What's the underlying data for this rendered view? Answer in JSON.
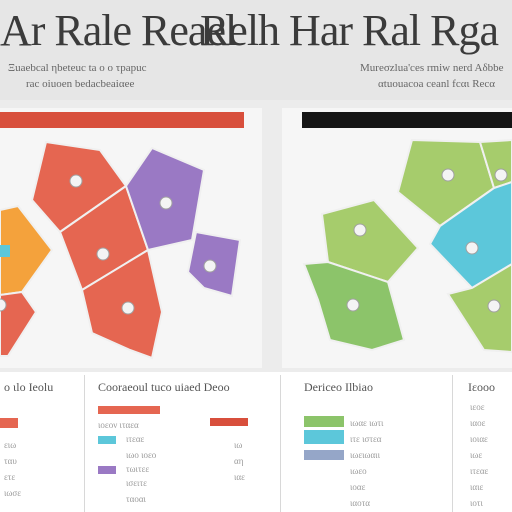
{
  "header": {
    "title_left": "Ar Rale Reael",
    "title_right": "Relh Har Ral Rga",
    "subtitle_left_1": "Ξuaebcal ηbeteuc ta ο ο τpapuc",
    "subtitle_left_2": "rac oiuoen bedacbeaiαee",
    "subtitle_right_1": "Mureσzlua'ces rmiw nerd Aδbbe",
    "subtitle_right_2": "αtuοuacoa ceanl fcαι Recα"
  },
  "legends": {
    "col1_head": "ο ιlo Ιeolu",
    "col2_head": "Coοraeoul tuco uiaed Deoo",
    "col3_head": "Dericeo Ιlbiao",
    "col4_head": "Ιεοοο"
  },
  "colors": {
    "red": "#e56651",
    "orange": "#f4a23c",
    "purple": "#9a79c4",
    "lime": "#a6cc6c",
    "cyan": "#5cc7da",
    "green": "#8cc46a",
    "blue_gray": "#95a6c8",
    "bar_red": "#d84f3c"
  },
  "icons": {
    "marker": "circle-marker-icon"
  }
}
